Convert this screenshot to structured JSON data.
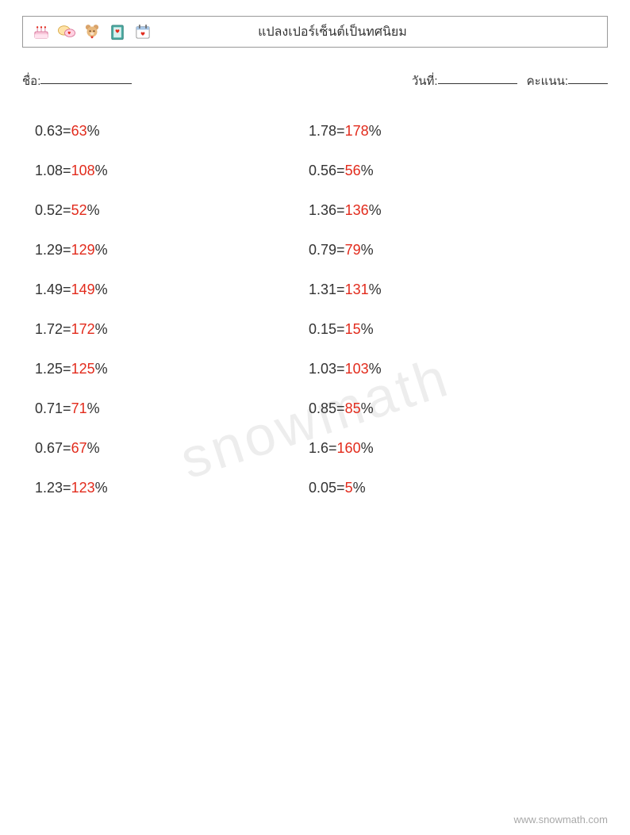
{
  "colors": {
    "text": "#333333",
    "answer": "#e22b1c",
    "border": "#999999",
    "watermark": "rgba(0,0,0,0.07)",
    "footer": "rgba(0,0,0,0.35)",
    "background": "#ffffff"
  },
  "header": {
    "title": "แปลงเปอร์เซ็นต์เป็นทศนิยม",
    "icons": [
      "cake",
      "speech-heart",
      "teddy",
      "book-heart",
      "calendar-heart"
    ]
  },
  "meta": {
    "name_label": "ชื่อ:",
    "date_label": "วันที่:",
    "score_label": "คะแนน:"
  },
  "problems": {
    "left": [
      {
        "decimal": "0.63",
        "answer": "63"
      },
      {
        "decimal": "1.08",
        "answer": "108"
      },
      {
        "decimal": "0.52",
        "answer": "52"
      },
      {
        "decimal": "1.29",
        "answer": "129"
      },
      {
        "decimal": "1.49",
        "answer": "149"
      },
      {
        "decimal": "1.72",
        "answer": "172"
      },
      {
        "decimal": "1.25",
        "answer": "125"
      },
      {
        "decimal": "0.71",
        "answer": "71"
      },
      {
        "decimal": "0.67",
        "answer": "67"
      },
      {
        "decimal": "1.23",
        "answer": "123"
      }
    ],
    "right": [
      {
        "decimal": "1.78",
        "answer": "178"
      },
      {
        "decimal": "0.56",
        "answer": "56"
      },
      {
        "decimal": "1.36",
        "answer": "136"
      },
      {
        "decimal": "0.79",
        "answer": "79"
      },
      {
        "decimal": "1.31",
        "answer": "131"
      },
      {
        "decimal": "0.15",
        "answer": "15"
      },
      {
        "decimal": "1.03",
        "answer": "103"
      },
      {
        "decimal": "0.85",
        "answer": "85"
      },
      {
        "decimal": "1.6",
        "answer": "160"
      },
      {
        "decimal": "0.05",
        "answer": "5"
      }
    ]
  },
  "equals": " = ",
  "percent": "%",
  "watermark": "snowmath",
  "footer": "www.snowmath.com"
}
